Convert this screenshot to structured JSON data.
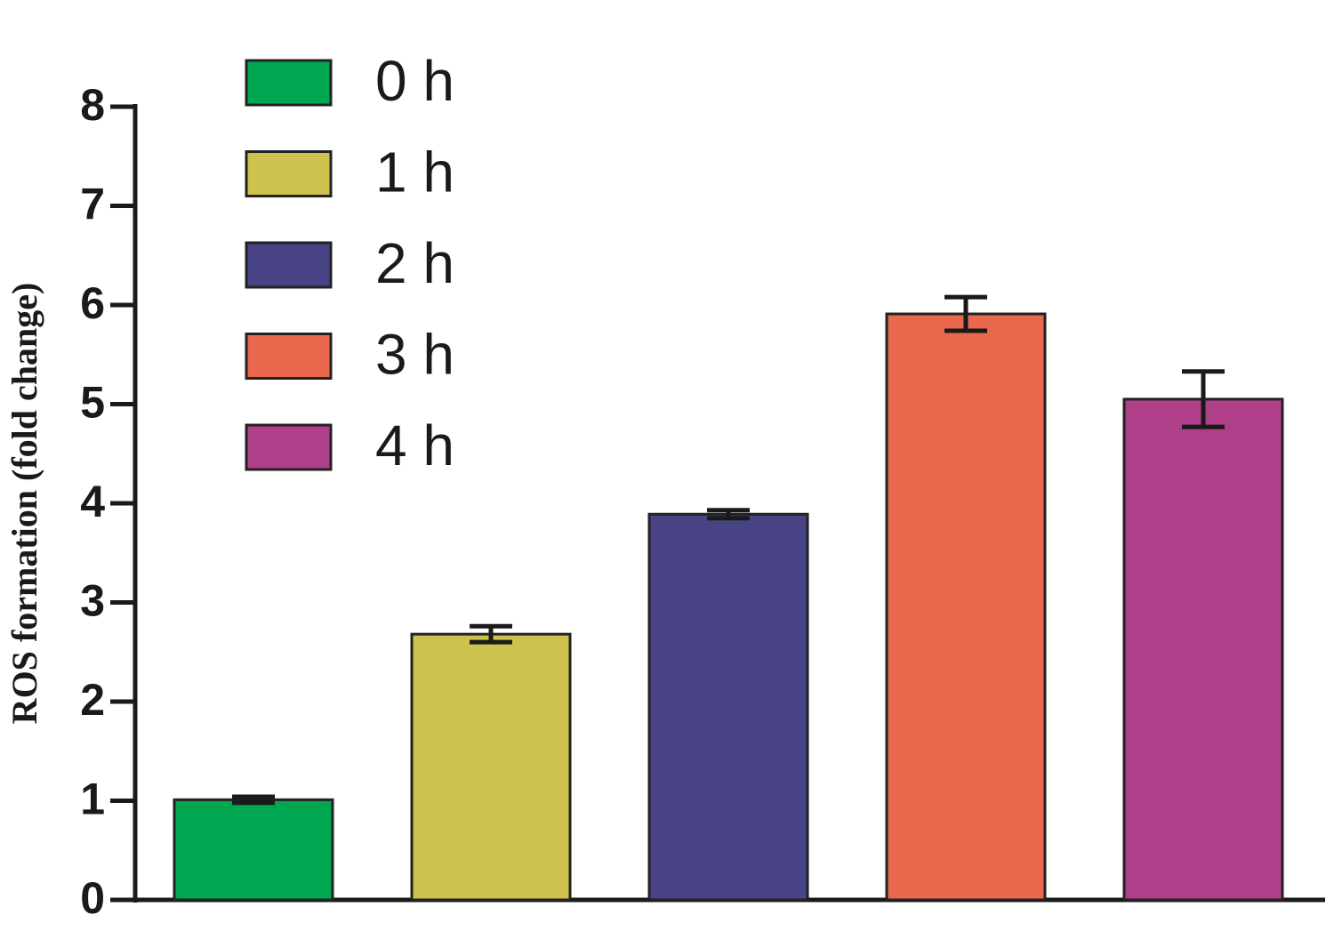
{
  "chart_data": {
    "type": "bar",
    "y_label": "ROS formation (fold change)",
    "ylim": [
      0,
      8
    ],
    "yticks": [
      0,
      1,
      2,
      3,
      4,
      5,
      6,
      7,
      8
    ],
    "series": [
      {
        "name": "0 h",
        "color": "#00a650",
        "values": [
          1.01
        ],
        "errors": [
          0.03
        ]
      },
      {
        "name": "1 h",
        "color": "#cdc24e",
        "values": [
          2.68
        ],
        "errors": [
          0.08
        ]
      },
      {
        "name": "2 h",
        "color": "#474385",
        "values": [
          3.89
        ],
        "errors": [
          0.04
        ]
      },
      {
        "name": "3 h",
        "color": "#e9684e",
        "values": [
          5.91
        ],
        "errors": [
          0.17
        ]
      },
      {
        "name": "4 h",
        "color": "#b03f8a",
        "values": [
          5.05
        ],
        "errors": [
          0.28
        ]
      }
    ]
  }
}
